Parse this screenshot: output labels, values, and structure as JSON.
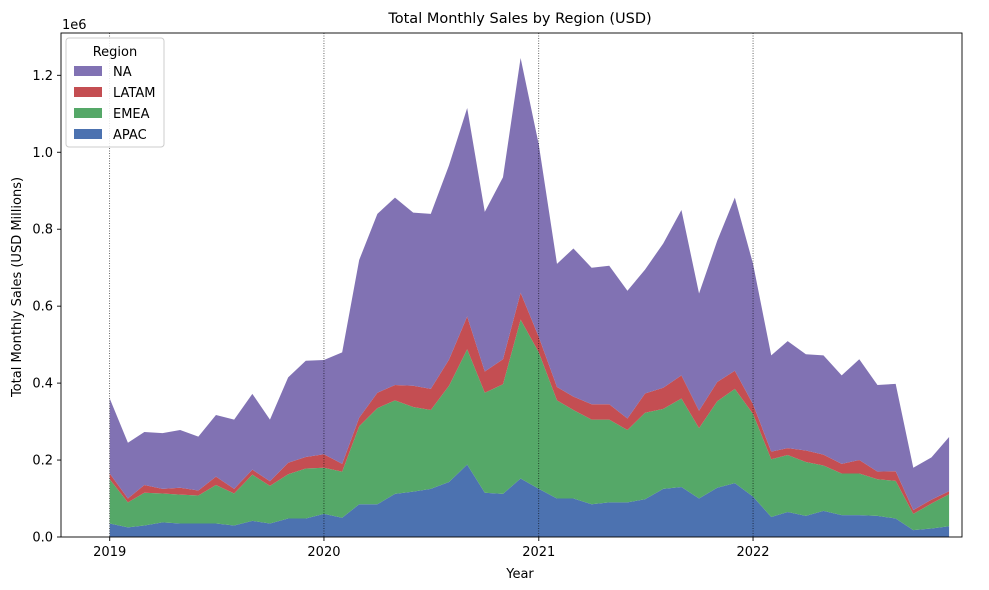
{
  "chart_data": {
    "type": "area",
    "stacked": true,
    "title": "Total Monthly Sales by Region (USD)",
    "xlabel": "Year",
    "ylabel": "Total Monthly Sales (USD Millions)",
    "y_offset_label": "1e6",
    "xlim": [
      "2018-10-10",
      "2022-12-23"
    ],
    "ylim": [
      0,
      1.31
    ],
    "x_ticks": [
      "2019-01-01",
      "2020-01-01",
      "2021-01-01",
      "2022-01-01"
    ],
    "x_tick_labels": [
      "2019",
      "2020",
      "2021",
      "2022"
    ],
    "vlines": [
      "2019-01-01",
      "2020-01-01",
      "2021-01-01",
      "2022-01-01"
    ],
    "y_ticks": [
      0.0,
      0.2,
      0.4,
      0.6,
      0.8,
      1.0,
      1.2
    ],
    "y_tick_labels": [
      "0.0",
      "0.2",
      "0.4",
      "0.6",
      "0.8",
      "1.0",
      "1.2"
    ],
    "legend": {
      "title": "Region",
      "position": "top-left",
      "entries": [
        "NA",
        "LATAM",
        "EMEA",
        "APAC"
      ]
    },
    "x": [
      "2019-01-01",
      "2019-02-01",
      "2019-03-01",
      "2019-04-01",
      "2019-05-01",
      "2019-06-01",
      "2019-07-01",
      "2019-08-01",
      "2019-09-01",
      "2019-10-01",
      "2019-11-01",
      "2019-12-01",
      "2020-01-01",
      "2020-02-01",
      "2020-03-01",
      "2020-04-01",
      "2020-05-01",
      "2020-06-01",
      "2020-07-01",
      "2020-08-01",
      "2020-09-01",
      "2020-10-01",
      "2020-11-01",
      "2020-12-01",
      "2021-01-01",
      "2021-02-01",
      "2021-03-01",
      "2021-04-01",
      "2021-05-01",
      "2021-06-01",
      "2021-07-01",
      "2021-08-01",
      "2021-09-01",
      "2021-10-01",
      "2021-11-01",
      "2021-12-01",
      "2022-01-01",
      "2022-02-01",
      "2022-03-01",
      "2022-04-01",
      "2022-05-01",
      "2022-06-01",
      "2022-07-01",
      "2022-08-01",
      "2022-09-01",
      "2022-10-01",
      "2022-11-01",
      "2022-12-01"
    ],
    "series": [
      {
        "name": "APAC",
        "color": "#4c72b0",
        "values": [
          0.035,
          0.025,
          0.03,
          0.038,
          0.035,
          0.035,
          0.035,
          0.03,
          0.042,
          0.035,
          0.048,
          0.048,
          0.06,
          0.05,
          0.085,
          0.085,
          0.112,
          0.118,
          0.125,
          0.143,
          0.188,
          0.115,
          0.112,
          0.152,
          0.125,
          0.1,
          0.1,
          0.085,
          0.09,
          0.09,
          0.098,
          0.125,
          0.13,
          0.1,
          0.128,
          0.14,
          0.105,
          0.052,
          0.065,
          0.055,
          0.068,
          0.057,
          0.057,
          0.055,
          0.048,
          0.018,
          0.022,
          0.028
        ]
      },
      {
        "name": "EMEA",
        "color": "#55a868",
        "values": [
          0.115,
          0.065,
          0.085,
          0.075,
          0.075,
          0.073,
          0.1,
          0.083,
          0.12,
          0.098,
          0.115,
          0.13,
          0.12,
          0.12,
          0.203,
          0.25,
          0.243,
          0.22,
          0.205,
          0.25,
          0.3,
          0.26,
          0.285,
          0.413,
          0.355,
          0.255,
          0.23,
          0.22,
          0.215,
          0.188,
          0.225,
          0.208,
          0.23,
          0.183,
          0.225,
          0.245,
          0.215,
          0.15,
          0.148,
          0.14,
          0.118,
          0.108,
          0.108,
          0.095,
          0.098,
          0.042,
          0.065,
          0.083
        ]
      },
      {
        "name": "LATAM",
        "color": "#c44e52",
        "values": [
          0.015,
          0.01,
          0.02,
          0.012,
          0.018,
          0.013,
          0.022,
          0.012,
          0.013,
          0.012,
          0.03,
          0.03,
          0.035,
          0.02,
          0.022,
          0.04,
          0.04,
          0.055,
          0.055,
          0.068,
          0.085,
          0.055,
          0.065,
          0.07,
          0.04,
          0.035,
          0.035,
          0.04,
          0.04,
          0.03,
          0.05,
          0.055,
          0.06,
          0.045,
          0.05,
          0.047,
          0.025,
          0.02,
          0.018,
          0.03,
          0.028,
          0.025,
          0.035,
          0.02,
          0.025,
          0.01,
          0.01,
          0.008
        ]
      },
      {
        "name": "NA",
        "color": "#8172b3",
        "values": [
          0.195,
          0.145,
          0.138,
          0.145,
          0.15,
          0.14,
          0.16,
          0.18,
          0.197,
          0.16,
          0.222,
          0.25,
          0.245,
          0.29,
          0.41,
          0.465,
          0.487,
          0.45,
          0.455,
          0.505,
          0.542,
          0.415,
          0.473,
          0.61,
          0.5,
          0.32,
          0.385,
          0.355,
          0.36,
          0.332,
          0.322,
          0.375,
          0.43,
          0.305,
          0.367,
          0.45,
          0.365,
          0.25,
          0.278,
          0.25,
          0.258,
          0.23,
          0.262,
          0.225,
          0.227,
          0.11,
          0.11,
          0.141
        ]
      }
    ]
  }
}
